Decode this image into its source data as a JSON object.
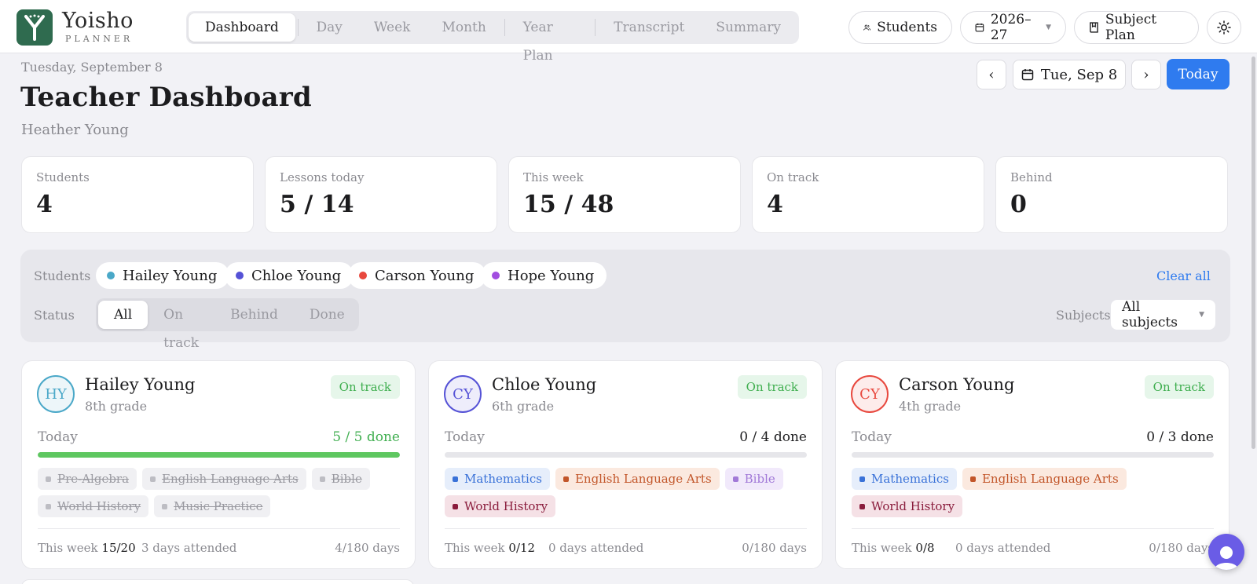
{
  "brand": {
    "name": "Yoisho",
    "sub": "PLANNER"
  },
  "nav": {
    "tabs": [
      "Dashboard",
      "Day",
      "Week",
      "Month",
      "Year Plan",
      "Transcript",
      "Summary"
    ]
  },
  "topbar": {
    "students_label": "Students",
    "year_label": "2026–27",
    "subject_plan_label": "Subject Plan"
  },
  "header": {
    "date_top": "Tuesday, September 8",
    "title": "Teacher Dashboard",
    "teacher": "Heather Young",
    "date_picker": "Tue, Sep 8",
    "prev": "‹",
    "next": "›",
    "today_label": "Today"
  },
  "stats": [
    {
      "label": "Students",
      "value": "4"
    },
    {
      "label": "Lessons today",
      "value": "5 / 14"
    },
    {
      "label": "This week",
      "value": "15 / 48"
    },
    {
      "label": "On track",
      "value": "4"
    },
    {
      "label": "Behind",
      "value": "0"
    }
  ],
  "filters": {
    "students_label": "Students",
    "students": [
      {
        "name": "Hailey Young",
        "color": "#4aa8c8"
      },
      {
        "name": "Chloe Young",
        "color": "#5552d6"
      },
      {
        "name": "Carson Young",
        "color": "#e8483e"
      },
      {
        "name": "Hope Young",
        "color": "#a24ee0"
      }
    ],
    "clear_all": "Clear all",
    "status_label": "Status",
    "status_options": [
      "All",
      "On track",
      "Behind",
      "Done"
    ],
    "subjects_label": "Subjects",
    "subjects_value": "All subjects"
  },
  "cards": [
    {
      "initials": "HY",
      "name": "Hailey Young",
      "grade": "8th grade",
      "badge": "On track",
      "today_label": "Today",
      "done_text": "5 / 5 done",
      "progress": 1.0,
      "color": "#4aa8c8",
      "tags": [
        {
          "label": "Pre-Algebra",
          "done": true
        },
        {
          "label": "English Language Arts",
          "done": true
        },
        {
          "label": "Bible",
          "done": true
        },
        {
          "label": "World History",
          "done": true
        },
        {
          "label": "Music Practice",
          "done": true
        }
      ],
      "week_label": "This week",
      "week_value": "15/20",
      "attended": "3 days attended",
      "days": "4/180 days"
    },
    {
      "initials": "CY",
      "name": "Chloe Young",
      "grade": "6th grade",
      "badge": "On track",
      "today_label": "Today",
      "done_text": "0 / 4 done",
      "progress": 0.0,
      "color": "#5552d6",
      "tags": [
        {
          "label": "Mathematics",
          "done": false,
          "bg": "#e6eefb",
          "fg": "#3a72d8"
        },
        {
          "label": "English Language Arts",
          "done": false,
          "bg": "#fbe9df",
          "fg": "#c2562a"
        },
        {
          "label": "Bible",
          "done": false,
          "bg": "#f1e9fb",
          "fg": "#a27ad8"
        },
        {
          "label": "World History",
          "done": false,
          "bg": "#f5e1e6",
          "fg": "#8a1c3c"
        }
      ],
      "week_label": "This week",
      "week_value": "0/12",
      "attended": "0 days attended",
      "days": "0/180 days"
    },
    {
      "initials": "CY",
      "name": "Carson Young",
      "grade": "4th grade",
      "badge": "On track",
      "today_label": "Today",
      "done_text": "0 / 3 done",
      "progress": 0.0,
      "color": "#e8483e",
      "tags": [
        {
          "label": "Mathematics",
          "done": false,
          "bg": "#e6eefb",
          "fg": "#3a72d8"
        },
        {
          "label": "English Language Arts",
          "done": false,
          "bg": "#fbe9df",
          "fg": "#c2562a"
        },
        {
          "label": "World History",
          "done": false,
          "bg": "#f5e1e6",
          "fg": "#8a1c3c"
        }
      ],
      "week_label": "This week",
      "week_value": "0/8",
      "attended": "0 days attended",
      "days": "0/180 days"
    }
  ],
  "colors": {
    "accent": "#2f7bef",
    "brand_green": "#2f6b4f",
    "on_track_bg": "#e6f6ea",
    "on_track_fg": "#3fae4f",
    "progress_fill": "#5ec760"
  }
}
